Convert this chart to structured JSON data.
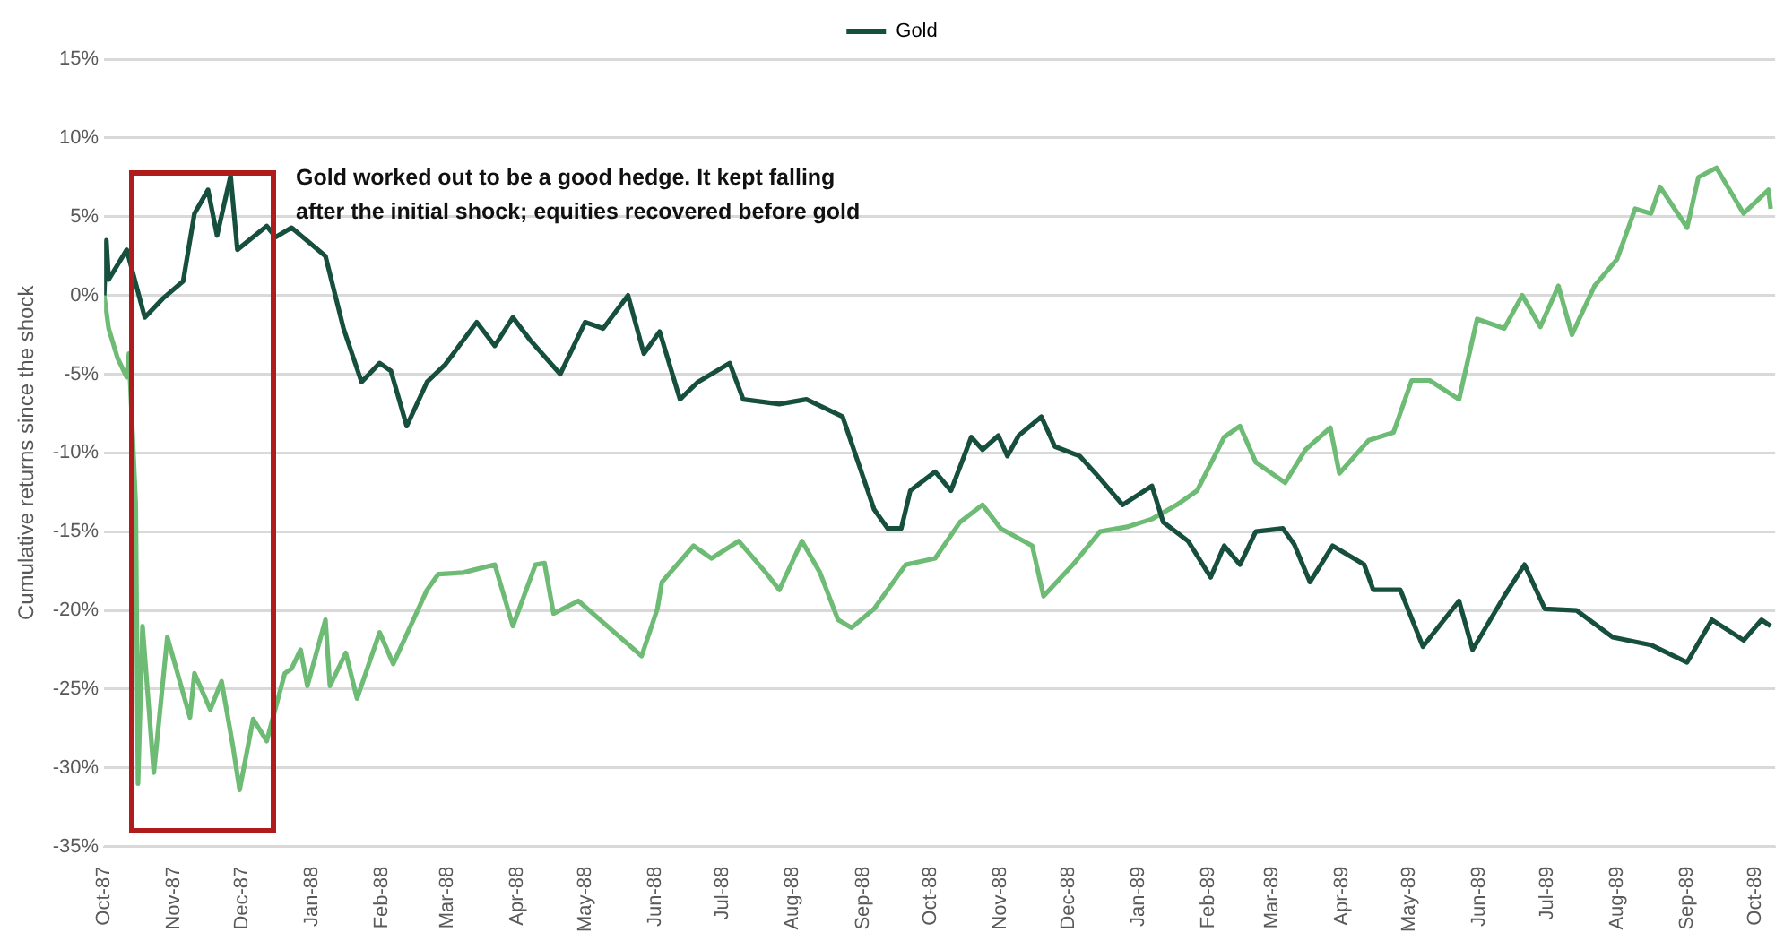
{
  "chart_data": {
    "type": "line",
    "ylabel": "Cumulative returns since the shock",
    "annotations": [
      "Gold worked out to be a good hedge. It kept falling after the initial shock; equities recovered before gold"
    ],
    "legend": "top",
    "grid": "y",
    "marker": "none",
    "xlim": [
      "1987-10-19",
      "1989-10-28"
    ],
    "xticks": [
      {
        "value": "1987-10-19",
        "label": "Oct-87"
      },
      {
        "value": "1987-11-19",
        "label": "Nov-87"
      },
      {
        "value": "1987-12-19",
        "label": "Dec-87"
      },
      {
        "value": "1988-01-19",
        "label": "Jan-88"
      },
      {
        "value": "1988-02-19",
        "label": "Feb-88"
      },
      {
        "value": "1988-03-19",
        "label": "Mar-88"
      },
      {
        "value": "1988-04-19",
        "label": "Apr-88"
      },
      {
        "value": "1988-05-19",
        "label": "May-88"
      },
      {
        "value": "1988-06-19",
        "label": "Jun-88"
      },
      {
        "value": "1988-07-19",
        "label": "Jul-88"
      },
      {
        "value": "1988-08-19",
        "label": "Aug-88"
      },
      {
        "value": "1988-09-19",
        "label": "Sep-88"
      },
      {
        "value": "1988-10-19",
        "label": "Oct-88"
      },
      {
        "value": "1988-11-19",
        "label": "Nov-88"
      },
      {
        "value": "1988-12-19",
        "label": "Dec-88"
      },
      {
        "value": "1989-01-19",
        "label": "Jan-89"
      },
      {
        "value": "1989-02-19",
        "label": "Feb-89"
      },
      {
        "value": "1989-03-19",
        "label": "Mar-89"
      },
      {
        "value": "1989-04-19",
        "label": "Apr-89"
      },
      {
        "value": "1989-05-19",
        "label": "May-89"
      },
      {
        "value": "1989-06-19",
        "label": "Jun-89"
      },
      {
        "value": "1989-07-19",
        "label": "Jul-89"
      },
      {
        "value": "1989-08-19",
        "label": "Aug-89"
      },
      {
        "value": "1989-09-19",
        "label": "Sep-89"
      },
      {
        "value": "1989-10-19",
        "label": "Oct-89"
      }
    ],
    "ylim": [
      -35,
      15
    ],
    "yticks": [
      {
        "value": -35,
        "label": "-35%"
      },
      {
        "value": -30,
        "label": "-30%"
      },
      {
        "value": -25,
        "label": "-25%"
      },
      {
        "value": -20,
        "label": "-20%"
      },
      {
        "value": -15,
        "label": "-15%"
      },
      {
        "value": -10,
        "label": "-10%"
      },
      {
        "value": -5,
        "label": "-5%"
      },
      {
        "value": 0,
        "label": "0%"
      },
      {
        "value": 5,
        "label": "5%"
      },
      {
        "value": 10,
        "label": "10%"
      },
      {
        "value": 15,
        "label": "15%"
      }
    ],
    "series": [
      {
        "name": "Gold",
        "color": "#174f3f",
        "x": [
          "1987-10-19",
          "1987-10-20",
          "1987-10-21",
          "1987-10-29",
          "1987-11-06",
          "1987-11-14",
          "1987-11-23",
          "1987-11-28",
          "1987-12-04",
          "1987-12-08",
          "1987-12-14",
          "1987-12-17",
          "1987-12-30",
          "1988-01-03",
          "1988-01-10",
          "1988-01-25",
          "1988-02-02",
          "1988-02-10",
          "1988-02-18",
          "1988-02-23",
          "1988-03-01",
          "1988-03-10",
          "1988-03-18",
          "1988-04-01",
          "1988-04-09",
          "1988-04-17",
          "1988-04-25",
          "1988-05-08",
          "1988-05-19",
          "1988-05-27",
          "1988-06-07",
          "1988-06-14",
          "1988-06-21",
          "1988-06-30",
          "1988-07-08",
          "1988-07-22",
          "1988-07-28",
          "1988-08-13",
          "1988-08-25",
          "1988-09-10",
          "1988-09-24",
          "1988-09-30",
          "1988-10-06",
          "1988-10-10",
          "1988-10-21",
          "1988-10-28",
          "1988-11-06",
          "1988-11-11",
          "1988-11-18",
          "1988-11-22",
          "1988-11-27",
          "1988-12-07",
          "1988-12-13",
          "1988-12-24",
          "1988-12-31",
          "1989-01-12",
          "1989-01-25",
          "1989-01-30",
          "1989-02-10",
          "1989-02-20",
          "1989-02-26",
          "1989-03-05",
          "1989-03-12",
          "1989-03-24",
          "1989-03-29",
          "1989-04-05",
          "1989-04-15",
          "1989-04-29",
          "1989-05-03",
          "1989-05-15",
          "1989-05-25",
          "1989-06-10",
          "1989-06-16",
          "1989-06-30",
          "1989-07-09",
          "1989-07-18",
          "1989-08-01",
          "1989-08-17",
          "1989-09-03",
          "1989-09-19",
          "1989-09-30",
          "1989-10-14",
          "1989-10-22",
          "1989-10-26"
        ],
        "values": [
          0,
          3.5,
          1.0,
          2.9,
          -1.4,
          -0.2,
          0.9,
          5.2,
          6.7,
          3.8,
          7.6,
          2.9,
          4.4,
          3.7,
          4.3,
          2.5,
          -2.1,
          -5.5,
          -4.3,
          -4.8,
          -8.3,
          -5.5,
          -4.4,
          -1.7,
          -3.2,
          -1.4,
          -2.9,
          -5.0,
          -1.7,
          -2.1,
          0,
          -3.7,
          -2.3,
          -6.6,
          -5.5,
          -4.3,
          -6.6,
          -6.9,
          -6.6,
          -7.7,
          -13.6,
          -14.8,
          -14.8,
          -12.4,
          -11.2,
          -12.4,
          -9.0,
          -9.8,
          -8.9,
          -10.2,
          -8.9,
          -7.7,
          -9.6,
          -10.2,
          -11.3,
          -13.3,
          -12.1,
          -14.4,
          -15.6,
          -17.9,
          -15.9,
          -17.1,
          -15.0,
          -14.8,
          -15.8,
          -18.2,
          -15.9,
          -17.1,
          -18.7,
          -18.7,
          -22.3,
          -19.4,
          -22.5,
          -19.1,
          -17.1,
          -19.9,
          -20.0,
          -21.7,
          -22.2,
          -23.3,
          -20.6,
          -21.9,
          -20.6,
          -21.0
        ]
      },
      {
        "color": "#6dbb74",
        "x": [
          "1987-10-19",
          "1987-10-21",
          "1987-10-25",
          "1987-10-29",
          "1987-10-30",
          "1987-11-02",
          "1987-11-03",
          "1987-11-05",
          "1987-11-10",
          "1987-11-16",
          "1987-11-26",
          "1987-11-28",
          "1987-12-05",
          "1987-12-10",
          "1987-12-15",
          "1987-12-18",
          "1987-12-24",
          "1987-12-30",
          "1988-01-07",
          "1988-01-10",
          "1988-01-14",
          "1988-01-17",
          "1988-01-25",
          "1988-01-27",
          "1988-02-03",
          "1988-02-08",
          "1988-02-18",
          "1988-02-24",
          "1988-03-10",
          "1988-03-15",
          "1988-03-26",
          "1988-04-09",
          "1988-04-17",
          "1988-04-27",
          "1988-05-01",
          "1988-05-05",
          "1988-05-16",
          "1988-06-01",
          "1988-06-13",
          "1988-06-20",
          "1988-06-22",
          "1988-07-06",
          "1988-07-14",
          "1988-07-26",
          "1988-08-07",
          "1988-08-13",
          "1988-08-23",
          "1988-08-31",
          "1988-09-08",
          "1988-09-14",
          "1988-09-24",
          "1988-10-08",
          "1988-10-21",
          "1988-11-01",
          "1988-11-11",
          "1988-11-19",
          "1988-12-03",
          "1988-12-08",
          "1988-12-21",
          "1989-01-02",
          "1989-01-14",
          "1989-01-25",
          "1989-02-05",
          "1989-02-14",
          "1989-02-26",
          "1989-03-05",
          "1989-03-12",
          "1989-03-25",
          "1989-04-03",
          "1989-04-14",
          "1989-04-18",
          "1989-05-01",
          "1989-05-12",
          "1989-05-20",
          "1989-05-28",
          "1989-06-10",
          "1989-06-18",
          "1989-06-30",
          "1989-07-08",
          "1989-07-16",
          "1989-07-24",
          "1989-07-30",
          "1989-08-09",
          "1989-08-19",
          "1989-08-27",
          "1989-09-03",
          "1989-09-07",
          "1989-09-19",
          "1989-09-24",
          "1989-10-02",
          "1989-10-14",
          "1989-10-25",
          "1989-10-26"
        ],
        "values": [
          0,
          -2.1,
          -4.0,
          -5.2,
          -3.7,
          -13.3,
          -31.0,
          -21.0,
          -30.3,
          -21.7,
          -26.8,
          -24.0,
          -26.3,
          -24.5,
          -28.6,
          -31.4,
          -26.9,
          -28.3,
          -24.0,
          -23.7,
          -22.5,
          -24.8,
          -20.6,
          -24.8,
          -22.7,
          -25.6,
          -21.4,
          -23.4,
          -18.7,
          -17.7,
          -17.6,
          -17.1,
          -21.0,
          -17.1,
          -17.0,
          -20.2,
          -19.4,
          -21.4,
          -22.9,
          -19.9,
          -18.2,
          -15.9,
          -16.7,
          -15.6,
          -17.6,
          -18.7,
          -15.6,
          -17.6,
          -20.6,
          -21.1,
          -19.9,
          -17.1,
          -16.7,
          -14.4,
          -13.3,
          -14.8,
          -15.9,
          -19.1,
          -17.1,
          -15.0,
          -14.7,
          -14.2,
          -13.3,
          -12.4,
          -9.0,
          -8.3,
          -10.6,
          -11.9,
          -9.8,
          -8.4,
          -11.3,
          -9.2,
          -8.7,
          -5.4,
          -5.4,
          -6.6,
          -1.5,
          -2.1,
          0,
          -2.0,
          0.6,
          -2.5,
          0.6,
          2.3,
          5.5,
          5.2,
          6.9,
          4.3,
          7.5,
          8.1,
          5.2,
          6.7,
          5.5
        ]
      }
    ]
  }
}
